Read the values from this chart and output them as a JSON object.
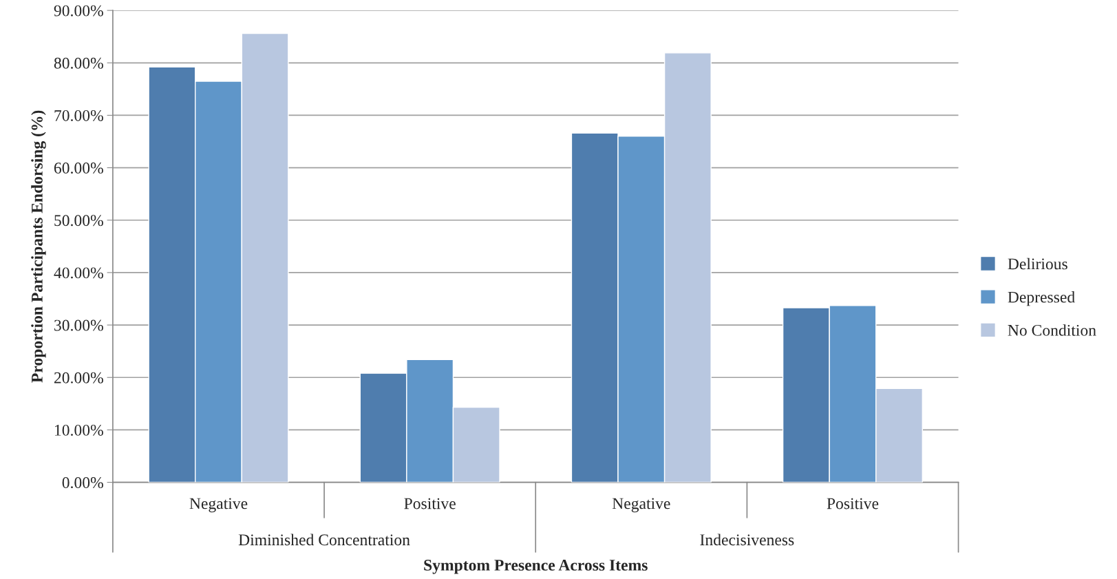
{
  "chart_data": {
    "type": "bar",
    "xlabel": "Symptom Presence Across Items",
    "ylabel": "Proportion Participants Endorsing (%)",
    "categories": [
      "Negative",
      "Positive",
      "Negative",
      "Positive"
    ],
    "annotations": [
      "Diminished Concentration",
      "Indecisiveness"
    ],
    "series": [
      {
        "name": "Delirious",
        "color": "#4f7dae",
        "values": [
          79.2,
          20.8,
          66.6,
          33.3
        ]
      },
      {
        "name": "Depressed",
        "color": "#5f96c9",
        "values": [
          76.5,
          23.4,
          66.0,
          33.7
        ]
      },
      {
        "name": "No Condition",
        "color": "#b8c7e0",
        "values": [
          85.6,
          14.3,
          81.9,
          17.9
        ]
      }
    ],
    "ylim": [
      0,
      90
    ],
    "yticks": [
      {
        "value": 0,
        "label": "0.00%"
      },
      {
        "value": 10,
        "label": "10.00%"
      },
      {
        "value": 20,
        "label": "20.00%"
      },
      {
        "value": 30,
        "label": "30.00%"
      },
      {
        "value": 40,
        "label": "40.00%"
      },
      {
        "value": 50,
        "label": "50.00%"
      },
      {
        "value": 60,
        "label": "60.00%"
      },
      {
        "value": 70,
        "label": "70.00%"
      },
      {
        "value": 80,
        "label": "80.00%"
      },
      {
        "value": 90,
        "label": "90.00%"
      }
    ],
    "grid": "y",
    "legend": "right"
  }
}
